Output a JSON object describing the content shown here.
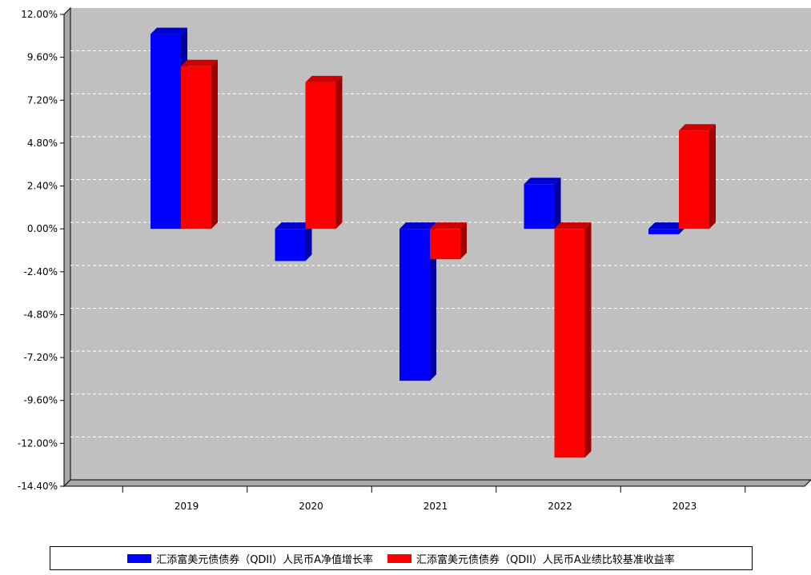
{
  "chart_data": {
    "type": "bar",
    "style": "3d-clustered",
    "categories": [
      "2019",
      "2020",
      "2021",
      "2022",
      "2023"
    ],
    "series": [
      {
        "name": "汇添富美元债债券（QDII）人民币A净值增长率",
        "color": "#0000ff",
        "values": [
          10.9,
          -1.8,
          -8.5,
          2.5,
          -0.3
        ]
      },
      {
        "name": "汇添富美元债债券（QDII）人民币A业绩比较基准收益率",
        "color": "#ff0000",
        "values": [
          9.1,
          8.2,
          -1.7,
          -12.8,
          5.5
        ]
      }
    ],
    "ylim": [
      -14.4,
      12.0
    ],
    "yticks": [
      "12.00%",
      "9.60%",
      "7.20%",
      "4.80%",
      "2.40%",
      "0.00%",
      "-2.40%",
      "-4.80%",
      "-7.20%",
      "-9.60%",
      "-12.00%",
      "-14.40%"
    ],
    "grid": true,
    "legend_position": "bottom",
    "background_color": "#c0c0c0"
  },
  "legend": {
    "items": [
      {
        "label": "汇添富美元债债券（QDII）人民币A净值增长率",
        "color": "#0000ff"
      },
      {
        "label": "汇添富美元债债券（QDII）人民币A业绩比较基准收益率",
        "color": "#ff0000"
      }
    ]
  }
}
